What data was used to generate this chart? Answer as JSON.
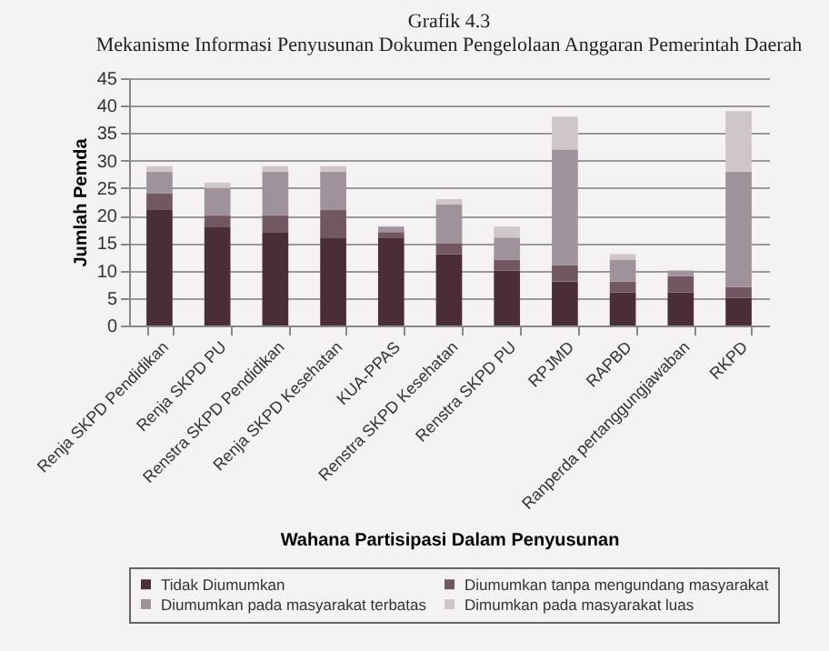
{
  "chart_data": {
    "type": "bar",
    "title": "Grafik 4.3",
    "subtitle": "Mekanisme Informasi Penyusunan Dokumen Pengelolaan Anggaran Pemerintah Daerah",
    "xlabel": "Wahana Partisipasi Dalam Penyusunan",
    "ylabel": "Jumlah Pemda",
    "categories": [
      "Renja SKPD Pendidikan",
      "Renja SKPD PU",
      "Renstra SKPD Pendidikan",
      "Renja SKPD Kesehatan",
      "KUA-PPAS",
      "Renstra SKPD Kesehatan",
      "Renstra SKPD PU",
      "RPJMD",
      "RAPBD",
      "Ranperda pertanggungjawaban",
      "RKPD"
    ],
    "series": [
      {
        "name": "Tidak Diumumkan",
        "color": "#4a2d37",
        "values": [
          21,
          18,
          17,
          16,
          16,
          13,
          10,
          8,
          6,
          6,
          5
        ]
      },
      {
        "name": "Diumumkan tanpa mengundang masyarakat",
        "color": "#705762",
        "values": [
          3,
          2,
          3,
          5,
          1,
          2,
          2,
          3,
          2,
          3,
          2
        ]
      },
      {
        "name": "Diumumkan pada masyarakat terbatas",
        "color": "#a0929a",
        "values": [
          4,
          5,
          8,
          7,
          1,
          7,
          4,
          21,
          4,
          1,
          21
        ]
      },
      {
        "name": "Dimumkan pada masyarakat luas",
        "color": "#cfc6ca",
        "values": [
          1,
          1,
          1,
          1,
          0,
          1,
          2,
          6,
          1,
          0,
          11
        ]
      }
    ],
    "stacked": true,
    "ylim": [
      0,
      45
    ],
    "yticks": [
      0,
      5,
      10,
      15,
      20,
      25,
      30,
      35,
      40,
      45
    ],
    "grid": "y",
    "legend": "bottom"
  }
}
